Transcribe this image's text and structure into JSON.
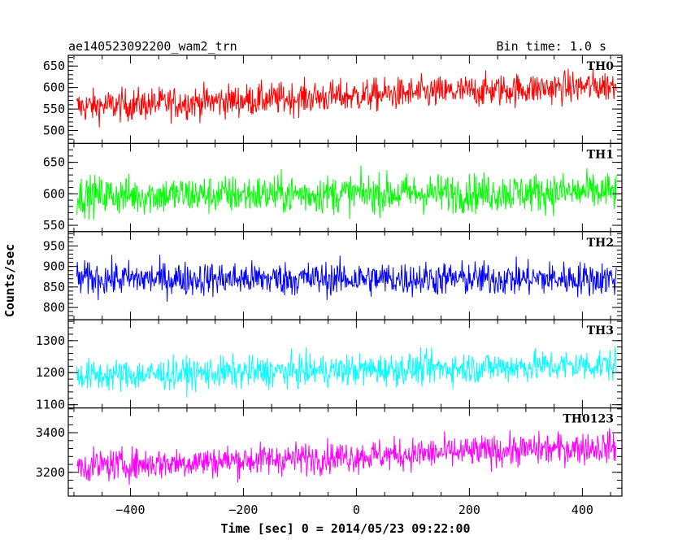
{
  "header": {
    "title": "ae140523092200_wam2_trn",
    "bin_time": "Bin time: 1.0 s"
  },
  "chart_data": {
    "type": "line",
    "x_range": [
      -510,
      470
    ],
    "x_ticks": [
      -400,
      -200,
      0,
      200,
      400
    ],
    "x_start": -495,
    "x_end": 460,
    "xlabel": "Time [sec] 0 = 2014/05/23 09:22:00",
    "ylabel": "Counts/sec",
    "grid": false,
    "panels": [
      {
        "name": "TH0",
        "color": "#ff0000",
        "ylim": [
          470,
          675
        ],
        "yticks": [
          500,
          550,
          600,
          650
        ],
        "trend_start": 555,
        "trend_end": 605,
        "noise": 32
      },
      {
        "name": "TH1",
        "color": "#00ff00",
        "ylim": [
          540,
          680
        ],
        "yticks": [
          550,
          600,
          650
        ],
        "trend_start": 597,
        "trend_end": 603,
        "noise": 26
      },
      {
        "name": "TH2",
        "color": "#0000ff",
        "ylim": [
          770,
          985
        ],
        "yticks": [
          800,
          850,
          900,
          950
        ],
        "trend_start": 870,
        "trend_end": 870,
        "noise": 35
      },
      {
        "name": "TH3",
        "color": "#00ffff",
        "ylim": [
          1090,
          1365
        ],
        "yticks": [
          1100,
          1200,
          1300
        ],
        "trend_start": 1190,
        "trend_end": 1225,
        "noise": 42
      },
      {
        "name": "TH0123",
        "color": "#ff00ff",
        "ylim": [
          3080,
          3525
        ],
        "yticks": [
          3200,
          3400
        ],
        "trend_start": 3230,
        "trend_end": 3330,
        "noise": 68
      }
    ]
  }
}
